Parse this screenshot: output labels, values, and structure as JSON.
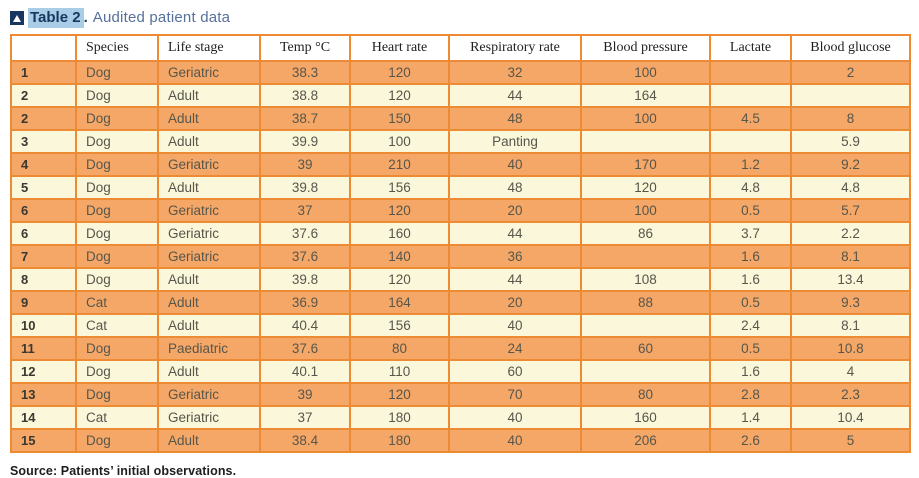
{
  "title": {
    "label": "Table 2",
    "separator": ".",
    "rest": "Audited patient data",
    "icon": "triangle-up-icon"
  },
  "table": {
    "headers": [
      "",
      "Species",
      "Life stage",
      "Temp °C",
      "Heart rate",
      "Respiratory rate",
      "Blood pressure",
      "Lactate",
      "Blood glucose"
    ],
    "rows": [
      [
        "1",
        "Dog",
        "Geriatric",
        "38.3",
        "120",
        "32",
        "100",
        "",
        "2"
      ],
      [
        "2",
        "Dog",
        "Adult",
        "38.8",
        "120",
        "44",
        "164",
        "",
        ""
      ],
      [
        "2",
        "Dog",
        "Adult",
        "38.7",
        "150",
        "48",
        "100",
        "4.5",
        "8"
      ],
      [
        "3",
        "Dog",
        "Adult",
        "39.9",
        "100",
        "Panting",
        "",
        "",
        "5.9"
      ],
      [
        "4",
        "Dog",
        "Geriatric",
        "39",
        "210",
        "40",
        "170",
        "1.2",
        "9.2"
      ],
      [
        "5",
        "Dog",
        "Adult",
        "39.8",
        "156",
        "48",
        "120",
        "4.8",
        "4.8"
      ],
      [
        "6",
        "Dog",
        "Geriatric",
        "37",
        "120",
        "20",
        "100",
        "0.5",
        "5.7"
      ],
      [
        "6",
        "Dog",
        "Geriatric",
        "37.6",
        "160",
        "44",
        "86",
        "3.7",
        "2.2"
      ],
      [
        "7",
        "Dog",
        "Geriatric",
        "37.6",
        "140",
        "36",
        "",
        "1.6",
        "8.1"
      ],
      [
        "8",
        "Dog",
        "Adult",
        "39.8",
        "120",
        "44",
        "108",
        "1.6",
        "13.4"
      ],
      [
        "9",
        "Cat",
        "Adult",
        "36.9",
        "164",
        "20",
        "88",
        "0.5",
        "9.3"
      ],
      [
        "10",
        "Cat",
        "Adult",
        "40.4",
        "156",
        "40",
        "",
        "2.4",
        "8.1"
      ],
      [
        "11",
        "Dog",
        "Paediatric",
        "37.6",
        "80",
        "24",
        "60",
        "0.5",
        "10.8"
      ],
      [
        "12",
        "Dog",
        "Adult",
        "40.1",
        "110",
        "60",
        "",
        "1.6",
        "4"
      ],
      [
        "13",
        "Dog",
        "Geriatric",
        "39",
        "120",
        "70",
        "80",
        "2.8",
        "2.3"
      ],
      [
        "14",
        "Cat",
        "Geriatric",
        "37",
        "180",
        "40",
        "160",
        "1.4",
        "10.4"
      ],
      [
        "15",
        "Dog",
        "Adult",
        "38.4",
        "180",
        "40",
        "206",
        "2.6",
        "5"
      ]
    ]
  },
  "source": "Source: Patients’ initial observations.",
  "colors": {
    "row-orange": "#F5A767",
    "row-cream": "#FAF7DA",
    "grid-orange": "#EC8B33",
    "title-navy": "#17375e",
    "title-highlight": "#a9cde6",
    "title-rest": "#55719c"
  }
}
